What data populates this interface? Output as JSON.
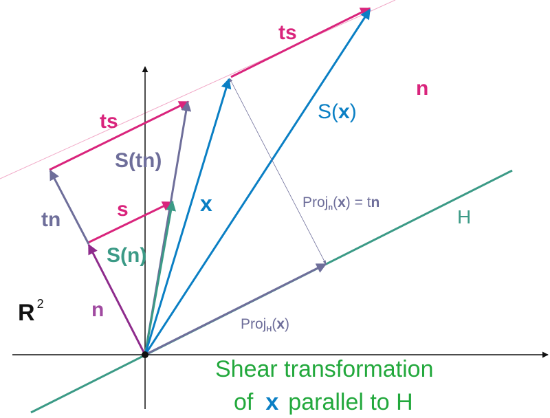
{
  "colors": {
    "magenta": "#d9247c",
    "blue": "#0a7fc4",
    "slate": "#6e6e9a",
    "teal": "#3b9a86",
    "purple": "#8e2b8c",
    "green": "#22a83c",
    "light_pink": "#f1a7c6",
    "axis": "#111111"
  },
  "labels": {
    "ts_top": "ts",
    "ts_left": "ts",
    "n_top_right": "n",
    "s_of_x_prefix": "S(",
    "s_of_x_var": "x",
    "s_of_x_suffix": ")",
    "s_of_tn": "S(tn)",
    "tn": "tn",
    "s": "s",
    "x": "x",
    "proj_n_prefix": "Proj",
    "proj_n_sub": "n",
    "proj_n_open": "(",
    "proj_n_var": "x",
    "proj_n_close": ") = t",
    "proj_n_n": "n",
    "H": "H",
    "s_of_n_prefix": "S(",
    "s_of_n_var": "n",
    "s_of_n_suffix": ")",
    "R": "R",
    "R_sup": "2",
    "n_vec": "n",
    "proj_h_prefix": "Proj",
    "proj_h_sub": "H",
    "proj_h_open": "(",
    "proj_h_var": "x",
    "proj_h_close": ")"
  },
  "caption": {
    "line1": "Shear transformation",
    "line2_pre": "of",
    "line2_var": "x",
    "line2_post": "parallel to H"
  }
}
